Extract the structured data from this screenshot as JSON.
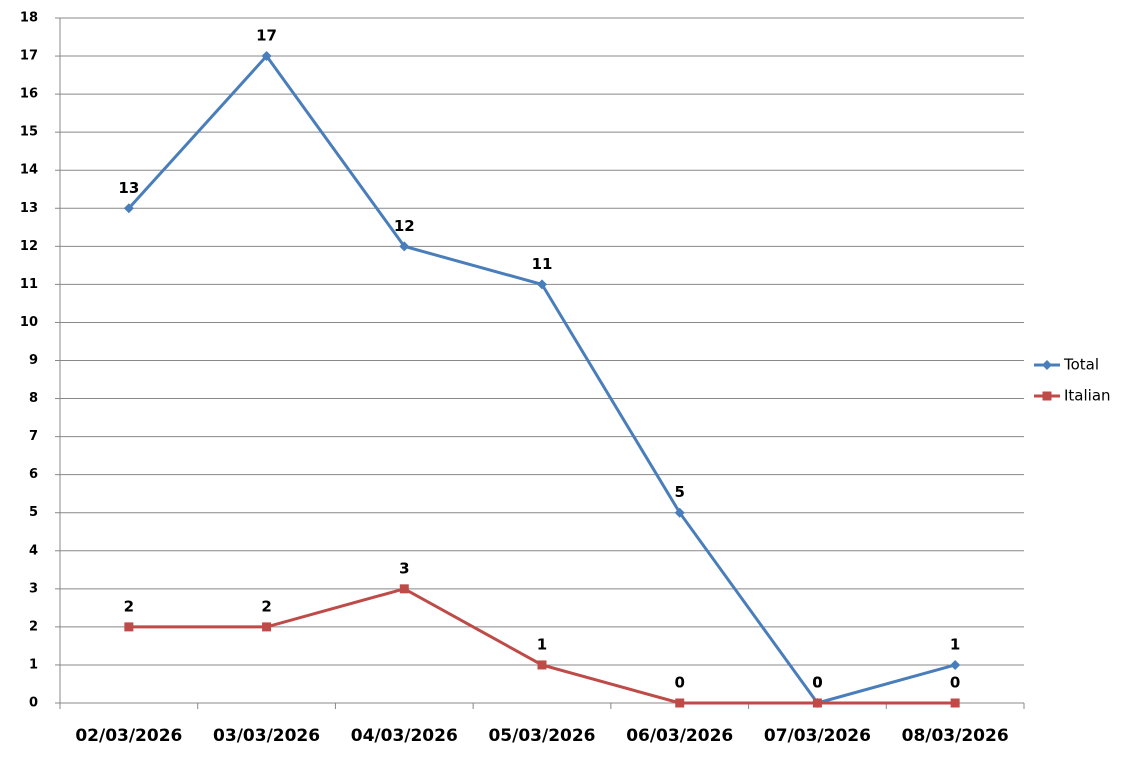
{
  "chart_data": {
    "type": "line",
    "categories": [
      "02/03/2026",
      "03/03/2026",
      "04/03/2026",
      "05/03/2026",
      "06/03/2026",
      "07/03/2026",
      "08/03/2026"
    ],
    "series": [
      {
        "name": "Total",
        "color": "#4a7ebb",
        "marker": "diamond",
        "values": [
          13,
          17,
          12,
          11,
          5,
          0,
          1
        ]
      },
      {
        "name": "Italian",
        "color": "#be4b48",
        "marker": "square",
        "values": [
          2,
          2,
          3,
          1,
          0,
          0,
          0
        ]
      }
    ],
    "ylim": [
      0,
      18
    ],
    "yticks": [
      0,
      1,
      2,
      3,
      4,
      5,
      6,
      7,
      8,
      9,
      10,
      11,
      12,
      13,
      14,
      15,
      16,
      17,
      18
    ],
    "grid": true,
    "legend": "right"
  }
}
